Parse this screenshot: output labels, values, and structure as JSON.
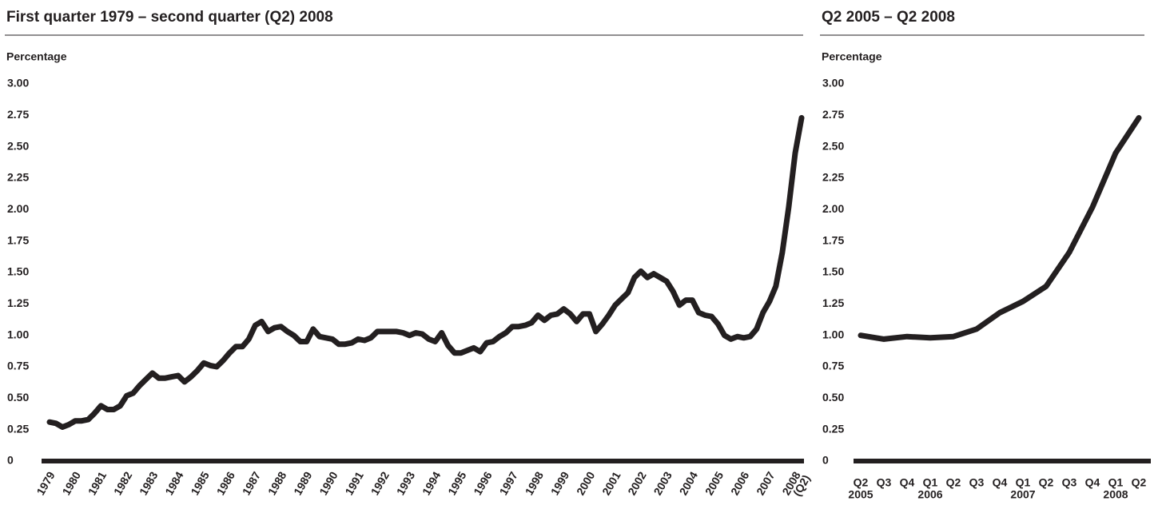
{
  "chart_data": [
    {
      "type": "line",
      "title": "First quarter 1979 – second quarter (Q2) 2008",
      "y_label": "Percentage",
      "categories": [
        "1979",
        null,
        null,
        null,
        "1980",
        null,
        null,
        null,
        "1981",
        null,
        null,
        null,
        "1982",
        null,
        null,
        null,
        "1983",
        null,
        null,
        null,
        "1984",
        null,
        null,
        null,
        "1985",
        null,
        null,
        null,
        "1986",
        null,
        null,
        null,
        "1987",
        null,
        null,
        null,
        "1988",
        null,
        null,
        null,
        "1989",
        null,
        null,
        null,
        "1990",
        null,
        null,
        null,
        "1991",
        null,
        null,
        null,
        "1992",
        null,
        null,
        null,
        "1993",
        null,
        null,
        null,
        "1994",
        null,
        null,
        null,
        "1995",
        null,
        null,
        null,
        "1996",
        null,
        null,
        null,
        "1997",
        null,
        null,
        null,
        "1998",
        null,
        null,
        null,
        "1999",
        null,
        null,
        null,
        "2000",
        null,
        null,
        null,
        "2001",
        null,
        null,
        null,
        "2002",
        null,
        null,
        null,
        "2003",
        null,
        null,
        null,
        "2004",
        null,
        null,
        null,
        "2005",
        null,
        null,
        null,
        "2006",
        null,
        null,
        null,
        "2007",
        null,
        null,
        null,
        "2008",
        null
      ],
      "x_annotation": "(Q2)",
      "color": "#231f20",
      "values": [
        0.31,
        0.3,
        0.27,
        0.29,
        0.32,
        0.32,
        0.33,
        0.38,
        0.44,
        0.41,
        0.41,
        0.44,
        0.52,
        0.54,
        0.6,
        0.65,
        0.7,
        0.66,
        0.66,
        0.67,
        0.68,
        0.63,
        0.67,
        0.72,
        0.78,
        0.76,
        0.75,
        0.8,
        0.86,
        0.91,
        0.91,
        0.97,
        1.08,
        1.11,
        1.03,
        1.06,
        1.07,
        1.03,
        1.0,
        0.95,
        0.95,
        1.05,
        0.99,
        0.98,
        0.97,
        0.93,
        0.93,
        0.94,
        0.97,
        0.96,
        0.98,
        1.03,
        1.03,
        1.03,
        1.03,
        1.02,
        1.0,
        1.02,
        1.01,
        0.97,
        0.95,
        1.02,
        0.92,
        0.86,
        0.86,
        0.88,
        0.9,
        0.87,
        0.94,
        0.95,
        0.99,
        1.02,
        1.07,
        1.07,
        1.08,
        1.1,
        1.16,
        1.12,
        1.16,
        1.17,
        1.21,
        1.17,
        1.11,
        1.17,
        1.17,
        1.03,
        1.09,
        1.16,
        1.24,
        1.29,
        1.34,
        1.46,
        1.51,
        1.46,
        1.49,
        1.46,
        1.43,
        1.35,
        1.24,
        1.28,
        1.28,
        1.18,
        1.16,
        1.15,
        1.09,
        1.0,
        0.97,
        0.99,
        0.98,
        0.99,
        1.05,
        1.18,
        1.27,
        1.39,
        1.66,
        2.02,
        2.45,
        2.73
      ],
      "ylim": [
        0,
        3
      ],
      "yticks": [
        0,
        0.25,
        {
          "value": 0.5,
          "label": "0.50"
        },
        0.75,
        {
          "value": 1,
          "label": "1.00"
        },
        1.25,
        {
          "value": 1.5,
          "label": "1.50"
        },
        1.75,
        {
          "value": 2,
          "label": "2.00"
        },
        2.25,
        {
          "value": 2.5,
          "label": "2.50"
        },
        2.75,
        {
          "value": 3,
          "label": "3.00"
        }
      ]
    },
    {
      "type": "line",
      "title": "Q2 2005 – Q2 2008",
      "y_label": "Percentage",
      "categories": [
        "Q2",
        "Q3",
        "Q4",
        "Q1",
        "Q2",
        "Q3",
        "Q4",
        "Q1",
        "Q2",
        "Q3",
        "Q4",
        "Q1",
        "Q2"
      ],
      "years": [
        "2005",
        null,
        null,
        "2006",
        null,
        null,
        null,
        "2007",
        null,
        null,
        null,
        "2008",
        null
      ],
      "color": "#231f20",
      "values": [
        1.0,
        0.97,
        0.99,
        0.98,
        0.99,
        1.05,
        1.18,
        1.27,
        1.39,
        1.66,
        2.02,
        2.45,
        2.73
      ],
      "ylim": [
        0,
        3
      ],
      "yticks": [
        0,
        0.25,
        {
          "value": 0.5,
          "label": "0.50"
        },
        0.75,
        {
          "value": 1,
          "label": "1.00"
        },
        1.25,
        {
          "value": 1.5,
          "label": "1.50"
        },
        1.75,
        {
          "value": 2,
          "label": "2.00"
        },
        2.25,
        {
          "value": 2.5,
          "label": "2.50"
        },
        2.75,
        {
          "value": 3,
          "label": "3.00"
        }
      ]
    }
  ]
}
